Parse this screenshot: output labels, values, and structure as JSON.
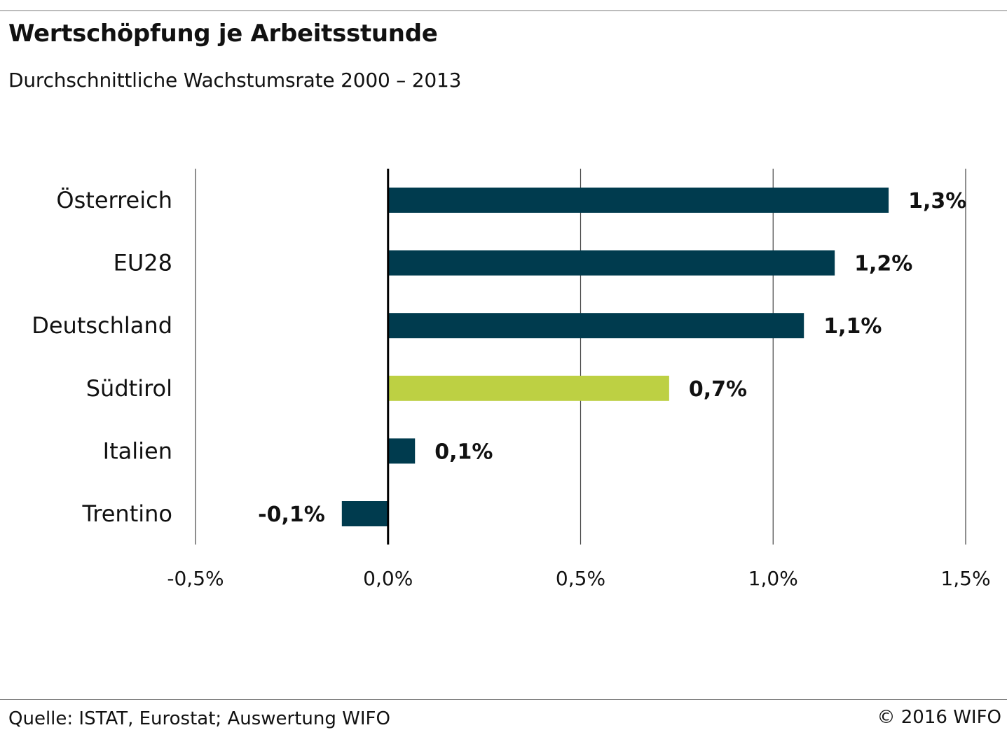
{
  "header": {
    "title": "Wertschöpfung je Arbeitsstunde",
    "subtitle": "Durchschnittliche Wachstumsrate 2000 – 2013"
  },
  "footer": {
    "source": "Quelle: ISTAT, Eurostat; Auswertung WIFO",
    "copyright": "© 2016 WIFO"
  },
  "colors": {
    "default_bar": "#003b4e",
    "highlight_bar": "#bdd043",
    "gridline": "#444444",
    "zero_axis": "#000000"
  },
  "chart_data": {
    "type": "bar",
    "orientation": "horizontal",
    "title": "Wertschöpfung je Arbeitsstunde",
    "subtitle": "Durchschnittliche Wachstumsrate 2000 – 2013",
    "categories": [
      "Österreich",
      "EU28",
      "Deutschland",
      "Südtirol",
      "Italien",
      "Trentino"
    ],
    "values": [
      1.3,
      1.16,
      1.08,
      0.73,
      0.07,
      -0.12
    ],
    "data_labels": [
      "1,3%",
      "1,2%",
      "1,1%",
      "0,7%",
      "0,1%",
      "-0,1%"
    ],
    "highlight_category": "Südtirol",
    "xlim": [
      -0.5,
      1.5
    ],
    "xticks": [
      -0.5,
      0.0,
      0.5,
      1.0,
      1.5
    ],
    "xtick_labels": [
      "-0,5%",
      "0,0%",
      "0,5%",
      "1,0%",
      "1,5%"
    ],
    "grid": true,
    "legend": "none"
  }
}
